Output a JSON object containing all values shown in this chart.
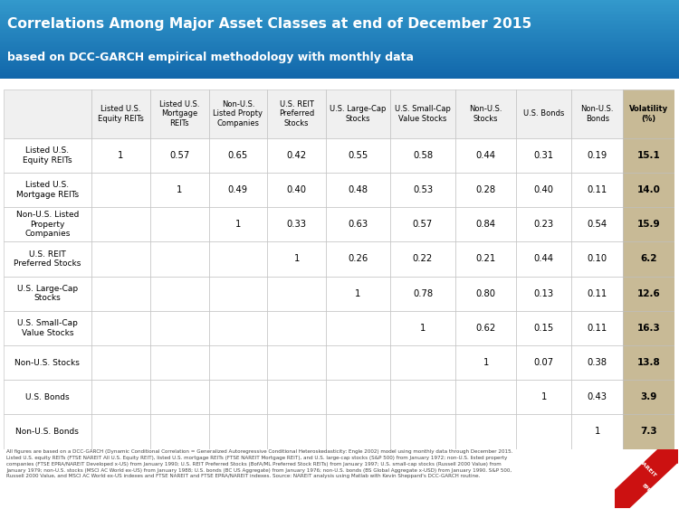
{
  "title_line1": "Correlations Among Major Asset Classes at end of December 2015",
  "title_line2": "based on DCC-GARCH empirical methodology with monthly data",
  "header_bg_top": "#3399CC",
  "header_bg_bot": "#1166AA",
  "divider_color": "#8B0000",
  "col_headers": [
    "Listed U.S.\nEquity REITs",
    "Listed U.S.\nMortgage\nREITs",
    "Non-U.S.\nListed Propty\nCompanies",
    "U.S. REIT\nPreferred\nStocks",
    "U.S. Large-Cap\nStocks",
    "U.S. Small-Cap\nValue Stocks",
    "Non-U.S.\nStocks",
    "U.S. Bonds",
    "Non-U.S.\nBonds",
    "Volatility\n(%)"
  ],
  "row_headers": [
    "Listed U.S.\nEquity REITs",
    "Listed U.S.\nMortgage REITs",
    "Non-U.S. Listed\nProperty\nCompanies",
    "U.S. REIT\nPreferred Stocks",
    "U.S. Large-Cap\nStocks",
    "U.S. Small-Cap\nValue Stocks",
    "Non-U.S. Stocks",
    "U.S. Bonds",
    "Non-U.S. Bonds"
  ],
  "corr_data": [
    [
      "1",
      "0.57",
      "0.65",
      "0.42",
      "0.55",
      "0.58",
      "0.44",
      "0.31",
      "0.19",
      "15.1"
    ],
    [
      "",
      "1",
      "0.49",
      "0.40",
      "0.48",
      "0.53",
      "0.28",
      "0.40",
      "0.11",
      "14.0"
    ],
    [
      "",
      "",
      "1",
      "0.33",
      "0.63",
      "0.57",
      "0.84",
      "0.23",
      "0.54",
      "15.9"
    ],
    [
      "",
      "",
      "",
      "1",
      "0.26",
      "0.22",
      "0.21",
      "0.44",
      "0.10",
      "6.2"
    ],
    [
      "",
      "",
      "",
      "",
      "1",
      "0.78",
      "0.80",
      "0.13",
      "0.11",
      "12.6"
    ],
    [
      "",
      "",
      "",
      "",
      "",
      "1",
      "0.62",
      "0.15",
      "0.11",
      "16.3"
    ],
    [
      "",
      "",
      "",
      "",
      "",
      "",
      "1",
      "0.07",
      "0.38",
      "13.8"
    ],
    [
      "",
      "",
      "",
      "",
      "",
      "",
      "",
      "1",
      "0.43",
      "3.9"
    ],
    [
      "",
      "",
      "",
      "",
      "",
      "",
      "",
      "",
      "1",
      "7.3"
    ]
  ],
  "footnote": "All figures are based on a DCC-GARCH (Dynamic Conditional Correlation = Generalized Autoregressive Conditional Heteroskedasticity: Engle 2002) model using monthly data through December 2015.\nListed U.S. equity REITs (FTSE NAREIT All U.S. Equity REIT), listed U.S. mortgage REITs (FTSE NAREIT Mortgage REIT), and U.S. large-cap stocks (S&P 500) from January 1972; non-U.S. listed property\ncompanies (FTSE EPRA/NAREIT Developed x-US) from January 1990; U.S. REIT Preferred Stocks (BofA/ML Preferred Stock REITs) from January 1997; U.S. small-cap stocks (Russell 2000 Value) from\nJanuary 1979; non-U.S. stocks (MSCI AC World ex-US) from January 1988; U.S. bonds (BC US Aggregate) from January 1976; non-U.S. bonds (BS Global Aggregate x-USD) from January 1990. S&P 500,\nRussell 2000 Value, and MSCI AC World ex-US indexes and FTSE NAREIT and FTSE EPRA/NAREIT indexes. Source: NAREIT analysis using Matlab with Kevin Sheppard's DCC-GARCH routine.",
  "volatility_bg": "#C8BA96",
  "header_cell_bg": "#F0F0F0",
  "white_bg": "#FFFFFF",
  "border_color": "#BBBBBB",
  "title_text_color": "#FFFFFF",
  "cell_text_color": "#000000",
  "footnote_color": "#444444"
}
